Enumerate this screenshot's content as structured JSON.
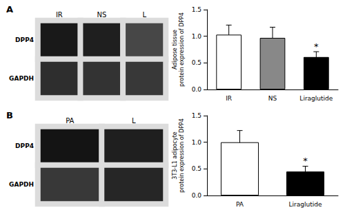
{
  "chart_data": [
    {
      "type": "heatmap",
      "title": "A",
      "categories": [
        "IR",
        "NS",
        "L"
      ],
      "rows": [
        "DPP4",
        "GAPDH"
      ],
      "values": [
        [
          0.9,
          0.88,
          0.72
        ],
        [
          0.82,
          0.8,
          0.78
        ]
      ]
    },
    {
      "type": "bar",
      "categories": [
        "IR",
        "NS",
        "Liraglutide"
      ],
      "values": [
        1.03,
        0.97,
        0.61
      ],
      "errors": [
        0.18,
        0.2,
        0.1
      ],
      "colors": [
        "#ffffff",
        "#888888",
        "#000000"
      ],
      "ylabel": "Adipose tissue\nprotein expression of DPP4",
      "ylim": [
        0,
        1.5
      ],
      "yticks": [
        {
          "value": 0,
          "label": "0.0"
        },
        0.5,
        {
          "value": 1,
          "label": "1.0"
        },
        1.5
      ],
      "grid": false,
      "annotations": [
        {
          "category": "Liraglutide",
          "text": "*"
        }
      ]
    },
    {
      "type": "heatmap",
      "title": "B",
      "categories": [
        "PA",
        "L"
      ],
      "rows": [
        "DPP4",
        "GAPDH"
      ],
      "values": [
        [
          0.92,
          0.88
        ],
        [
          0.78,
          0.85
        ]
      ]
    },
    {
      "type": "bar",
      "categories": [
        "PA",
        "Liraglutide"
      ],
      "values": [
        1.0,
        0.45
      ],
      "errors": [
        0.22,
        0.1
      ],
      "colors": [
        "#ffffff",
        "#000000"
      ],
      "ylabel": "3T3-L1 adipocyte\nprotein expression of DPP4",
      "ylim": [
        0,
        1.5
      ],
      "yticks": [
        {
          "value": 0,
          "label": "0.0"
        },
        0.5,
        {
          "value": 1,
          "label": "1.0"
        },
        1.5
      ],
      "grid": false,
      "annotations": [
        {
          "category": "Liraglutide",
          "text": "*"
        }
      ]
    }
  ]
}
